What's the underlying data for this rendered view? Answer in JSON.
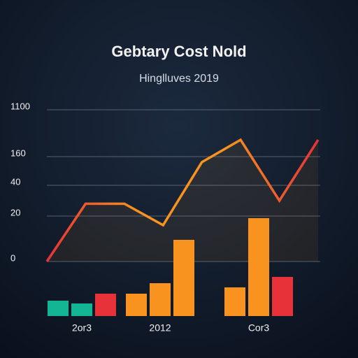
{
  "chart_data": [
    {
      "type": "line",
      "title": "Gebtary Cost Nold",
      "subtitle": "Hinglluves 2019",
      "values": [
        0,
        28,
        28,
        16,
        137,
        497,
        30,
        497
      ],
      "colors": [
        "#e8323a",
        "#f7931e",
        "#f7931e",
        "#e8323a"
      ],
      "ylim": [
        0,
        1100
      ],
      "yticks": [
        0,
        20,
        40,
        160,
        {
          "value": 1100,
          "label": "1100"
        }
      ],
      "grid": true
    },
    {
      "type": "bar",
      "categories": [
        "2or3",
        "2012",
        "Cor3"
      ],
      "series": [
        {
          "values": [
            22,
            32,
            41
          ],
          "colors": [
            "#13b594",
            "#f7931e",
            "#f7931e"
          ]
        },
        {
          "values": [
            18,
            47,
            140
          ],
          "colors": [
            "#13b594",
            "#f7931e",
            "#f7931e"
          ]
        },
        {
          "values": [
            32,
            109,
            56
          ],
          "colors": [
            "#e8323a",
            "#f7931e",
            "#e8323a"
          ]
        }
      ]
    }
  ]
}
